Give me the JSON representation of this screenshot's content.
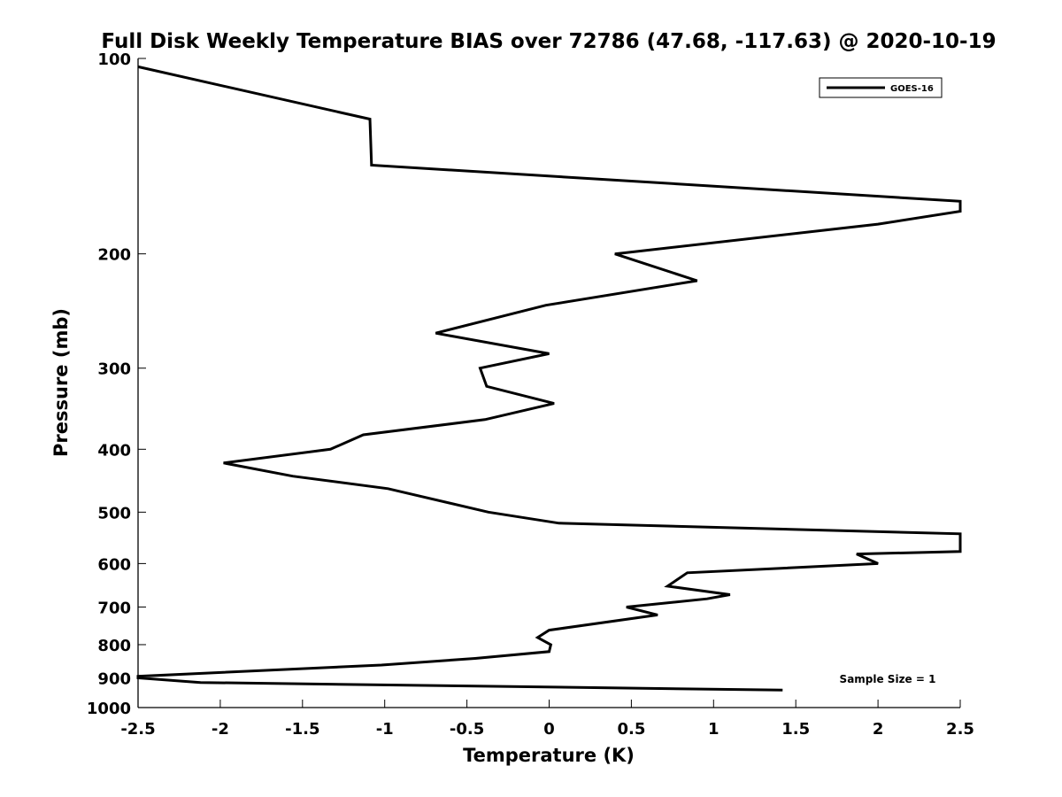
{
  "chart_data": {
    "type": "line",
    "title": "Full Disk Weekly Temperature BIAS over 72786 (47.68, -117.63) @ 2020-10-19",
    "xlabel": "Temperature (K)",
    "ylabel": "Pressure (mb)",
    "xlim": [
      -2.5,
      2.5
    ],
    "ylim": [
      1000,
      100
    ],
    "y_scale": "log",
    "y_reversed": true,
    "grid": false,
    "x_ticks": [
      -2.5,
      -2,
      -1.5,
      -1,
      -0.5,
      0,
      0.5,
      1,
      1.5,
      2,
      2.5
    ],
    "x_tick_labels": [
      "-2.5",
      "-2",
      "-1.5",
      "-1",
      "-0.5",
      "0",
      "0.5",
      "1",
      "1.5",
      "2",
      "2.5"
    ],
    "y_ticks": [
      100,
      200,
      300,
      400,
      500,
      600,
      700,
      800,
      900,
      1000
    ],
    "y_tick_labels": [
      "100",
      "200",
      "300",
      "400",
      "500",
      "600",
      "700",
      "800",
      "900",
      "1000"
    ],
    "legend_position": "top-right",
    "line_color": "#000000",
    "series": [
      {
        "name": "GOES-16",
        "points": [
          {
            "x": -2.5,
            "y": 103
          },
          {
            "x": -1.09,
            "y": 124
          },
          {
            "x": -1.08,
            "y": 146
          },
          {
            "x": 2.5,
            "y": 166
          },
          {
            "x": 2.5,
            "y": 172
          },
          {
            "x": 2.0,
            "y": 180
          },
          {
            "x": 0.4,
            "y": 200
          },
          {
            "x": 0.9,
            "y": 220
          },
          {
            "x": -0.02,
            "y": 240
          },
          {
            "x": -0.69,
            "y": 265
          },
          {
            "x": 0.0,
            "y": 285
          },
          {
            "x": -0.42,
            "y": 300
          },
          {
            "x": -0.38,
            "y": 320
          },
          {
            "x": 0.03,
            "y": 340
          },
          {
            "x": -0.39,
            "y": 360
          },
          {
            "x": -1.13,
            "y": 380
          },
          {
            "x": -1.33,
            "y": 400
          },
          {
            "x": -1.98,
            "y": 420
          },
          {
            "x": -1.56,
            "y": 440
          },
          {
            "x": -0.98,
            "y": 460
          },
          {
            "x": -0.37,
            "y": 500
          },
          {
            "x": 0.06,
            "y": 520
          },
          {
            "x": 2.5,
            "y": 540
          },
          {
            "x": 2.5,
            "y": 575
          },
          {
            "x": 1.87,
            "y": 580
          },
          {
            "x": 2.0,
            "y": 600
          },
          {
            "x": 0.84,
            "y": 620
          },
          {
            "x": 0.72,
            "y": 650
          },
          {
            "x": 1.1,
            "y": 670
          },
          {
            "x": 0.96,
            "y": 680
          },
          {
            "x": 0.47,
            "y": 700
          },
          {
            "x": 0.66,
            "y": 720
          },
          {
            "x": 0.0,
            "y": 760
          },
          {
            "x": -0.07,
            "y": 780
          },
          {
            "x": 0.01,
            "y": 800
          },
          {
            "x": 0.0,
            "y": 820
          },
          {
            "x": -0.45,
            "y": 840
          },
          {
            "x": -1.02,
            "y": 860
          },
          {
            "x": -2.5,
            "y": 895
          },
          {
            "x": -2.5,
            "y": 900
          },
          {
            "x": -2.12,
            "y": 915
          },
          {
            "x": 1.42,
            "y": 940
          }
        ]
      }
    ],
    "annotations": [
      {
        "text": "Sample Size = 1",
        "position": "bottom-right"
      }
    ]
  }
}
